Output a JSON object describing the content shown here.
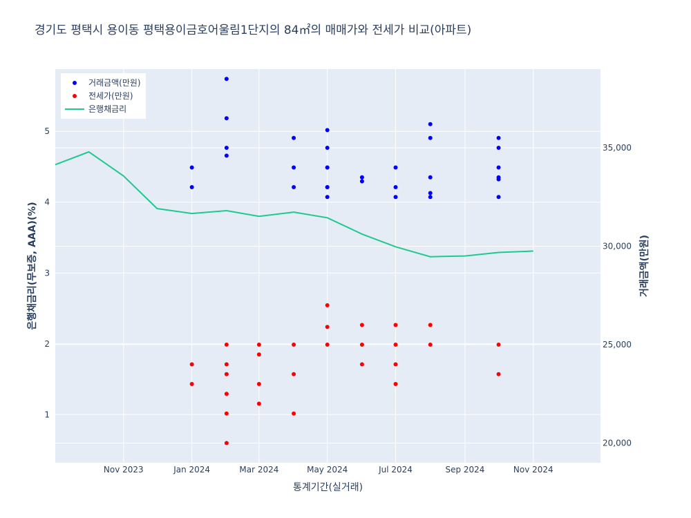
{
  "chart_data": {
    "type": "scatter",
    "title": "경기도 평택시 용이동 평택용이금호어울림1단지의 84㎡의 매매가와 전세가 비교(아파트)",
    "xlabel": "통계기간(실거래)",
    "ylabel_left": "은행채금리(무보증, AAA)(%)",
    "ylabel_right": "거래금액(만원)",
    "x_range": [
      "2023-09-01",
      "2024-12-31"
    ],
    "y_left_range": [
      0.32,
      5.88
    ],
    "y_right_range": [
      19000,
      39000
    ],
    "x_ticks": [
      {
        "date": "2023-11-01",
        "label": "Nov 2023"
      },
      {
        "date": "2024-01-01",
        "label": "Jan 2024"
      },
      {
        "date": "2024-03-01",
        "label": "Mar 2024"
      },
      {
        "date": "2024-05-01",
        "label": "May 2024"
      },
      {
        "date": "2024-07-01",
        "label": "Jul 2024"
      },
      {
        "date": "2024-09-01",
        "label": "Sep 2024"
      },
      {
        "date": "2024-11-01",
        "label": "Nov 2024"
      }
    ],
    "y_left_ticks": [
      {
        "value": 1,
        "label": "1"
      },
      {
        "value": 2,
        "label": "2"
      },
      {
        "value": 3,
        "label": "3"
      },
      {
        "value": 4,
        "label": "4"
      },
      {
        "value": 5,
        "label": "5"
      }
    ],
    "y_right_ticks": [
      {
        "value": 20000,
        "label": "20,000"
      },
      {
        "value": 25000,
        "label": "25,000"
      },
      {
        "value": 30000,
        "label": "30,000"
      },
      {
        "value": 35000,
        "label": "35,000"
      }
    ],
    "grid": true,
    "legend_position": "top-left",
    "series": [
      {
        "name": "거래금액(만원)",
        "kind": "markers",
        "axis": "right",
        "color": "#0000ff",
        "points": [
          [
            "2024-01-01",
            34000
          ],
          [
            "2024-01-01",
            33000
          ],
          [
            "2024-02-01",
            38500
          ],
          [
            "2024-02-01",
            36500
          ],
          [
            "2024-02-01",
            35000
          ],
          [
            "2024-02-01",
            34600
          ],
          [
            "2024-04-01",
            35500
          ],
          [
            "2024-04-01",
            34000
          ],
          [
            "2024-04-01",
            33000
          ],
          [
            "2024-05-01",
            35900
          ],
          [
            "2024-05-01",
            35000
          ],
          [
            "2024-05-01",
            34000
          ],
          [
            "2024-05-01",
            34000
          ],
          [
            "2024-05-01",
            33000
          ],
          [
            "2024-05-01",
            33000
          ],
          [
            "2024-05-01",
            32500
          ],
          [
            "2024-06-01",
            33500
          ],
          [
            "2024-06-01",
            33300
          ],
          [
            "2024-07-01",
            34000
          ],
          [
            "2024-07-01",
            33000
          ],
          [
            "2024-07-01",
            32500
          ],
          [
            "2024-08-01",
            36200
          ],
          [
            "2024-08-01",
            35500
          ],
          [
            "2024-08-01",
            33500
          ],
          [
            "2024-08-01",
            32700
          ],
          [
            "2024-08-01",
            32500
          ],
          [
            "2024-10-01",
            35500
          ],
          [
            "2024-10-01",
            35000
          ],
          [
            "2024-10-01",
            34000
          ],
          [
            "2024-10-01",
            33500
          ],
          [
            "2024-10-01",
            33400
          ],
          [
            "2024-10-01",
            32500
          ]
        ]
      },
      {
        "name": "전세가(만원)",
        "kind": "markers",
        "axis": "right",
        "color": "#ff0000",
        "points": [
          [
            "2024-01-01",
            24000
          ],
          [
            "2024-01-01",
            23000
          ],
          [
            "2024-02-01",
            25000
          ],
          [
            "2024-02-01",
            24000
          ],
          [
            "2024-02-01",
            23500
          ],
          [
            "2024-02-01",
            22500
          ],
          [
            "2024-02-01",
            21500
          ],
          [
            "2024-02-01",
            20000
          ],
          [
            "2024-03-01",
            25000
          ],
          [
            "2024-03-01",
            24500
          ],
          [
            "2024-03-01",
            23000
          ],
          [
            "2024-03-01",
            22000
          ],
          [
            "2024-04-01",
            25000
          ],
          [
            "2024-04-01",
            23500
          ],
          [
            "2024-04-01",
            21500
          ],
          [
            "2024-05-01",
            27000
          ],
          [
            "2024-05-01",
            25900
          ],
          [
            "2024-05-01",
            25000
          ],
          [
            "2024-06-01",
            26000
          ],
          [
            "2024-06-01",
            25000
          ],
          [
            "2024-06-01",
            24000
          ],
          [
            "2024-07-01",
            26000
          ],
          [
            "2024-07-01",
            25000
          ],
          [
            "2024-07-01",
            24000
          ],
          [
            "2024-07-01",
            23000
          ],
          [
            "2024-08-01",
            26000
          ],
          [
            "2024-08-01",
            25000
          ],
          [
            "2024-10-01",
            25000
          ],
          [
            "2024-10-01",
            23500
          ]
        ]
      },
      {
        "name": "은행채금리",
        "kind": "line",
        "axis": "left",
        "color": "#1fc98e",
        "points": [
          [
            "2023-09-01",
            4.53
          ],
          [
            "2023-10-01",
            4.71
          ],
          [
            "2023-11-01",
            4.37
          ],
          [
            "2023-12-01",
            3.91
          ],
          [
            "2024-01-01",
            3.84
          ],
          [
            "2024-02-01",
            3.88
          ],
          [
            "2024-03-01",
            3.8
          ],
          [
            "2024-04-01",
            3.86
          ],
          [
            "2024-05-01",
            3.78
          ],
          [
            "2024-06-01",
            3.55
          ],
          [
            "2024-07-01",
            3.37
          ],
          [
            "2024-08-01",
            3.23
          ],
          [
            "2024-09-01",
            3.24
          ],
          [
            "2024-10-01",
            3.29
          ],
          [
            "2024-11-01",
            3.31
          ]
        ]
      }
    ]
  }
}
